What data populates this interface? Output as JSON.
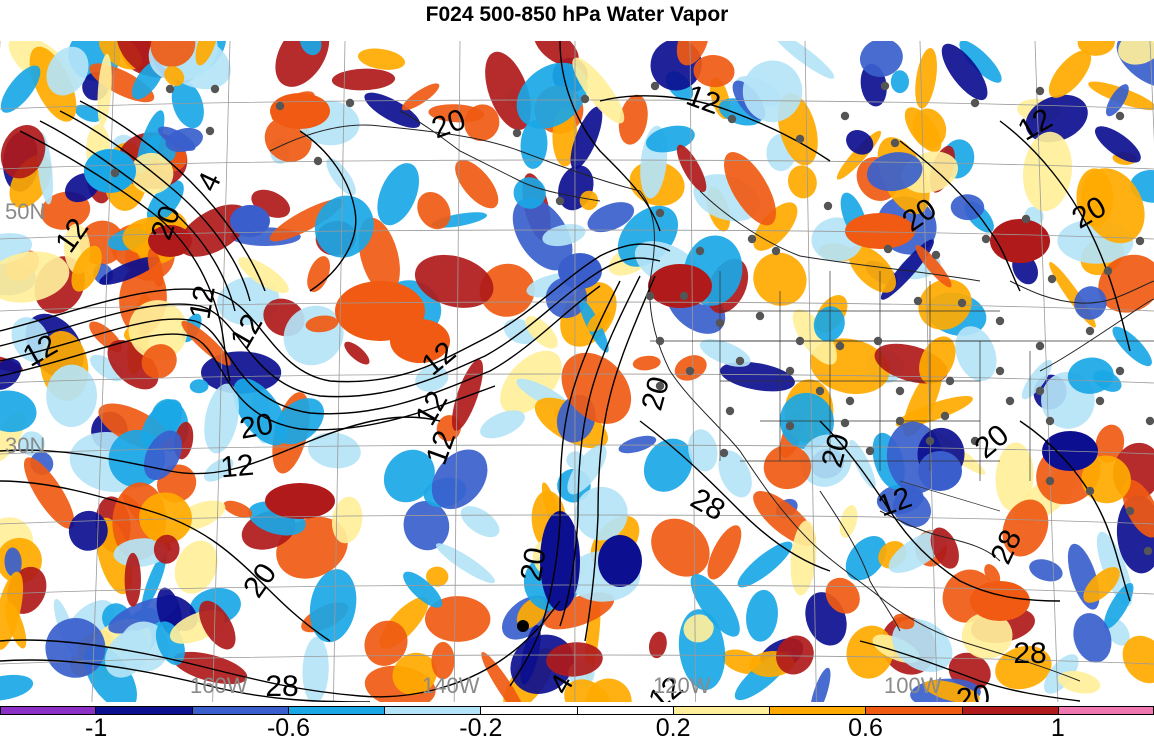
{
  "title": "F024 500-850 hPa Water Vapor",
  "axis_labels": {
    "lat_50n": "50N",
    "lat_30n": "30N",
    "lon_160w": "160W",
    "lon_140w": "140W",
    "lon_120w": "120W",
    "lon_100w": "100W"
  },
  "contour_labels": [
    "12",
    "20",
    "4",
    "12",
    "12",
    "20",
    "12",
    "20",
    "12",
    "12",
    "20",
    "12",
    "12",
    "12",
    "12",
    "20",
    "20",
    "20",
    "20",
    "20",
    "12",
    "28",
    "28",
    "28",
    "28",
    "12",
    "20",
    "20",
    "4"
  ],
  "colorbar": {
    "colors": [
      "#8c2fc6",
      "#0c0f8f",
      "#3a5fcd",
      "#1aa7e6",
      "#b4e4f7",
      "#ffffff",
      "#ffffff",
      "#ffef9a",
      "#ffaa00",
      "#f05a12",
      "#b01a1a",
      "#f077b0"
    ],
    "tick_labels": [
      "-1",
      "-0.6",
      "-0.2",
      "0.2",
      "0.6",
      "1"
    ]
  },
  "chart_data": {
    "type": "heatmap",
    "title": "F024 500-850 hPa Water Vapor",
    "variable": "water vapor anomaly (shaded) with contours",
    "levels": [
      -1.2,
      -1,
      -0.8,
      -0.6,
      -0.4,
      -0.2,
      0,
      0.2,
      0.4,
      0.6,
      0.8,
      1,
      1.2
    ],
    "colorbar_ticks": [
      -1,
      -0.6,
      -0.2,
      0.2,
      0.6,
      1
    ],
    "contour_values": [
      4,
      12,
      20,
      28
    ],
    "latitude_labels": [
      "50N",
      "30N"
    ],
    "longitude_labels": [
      "160W",
      "140W",
      "120W",
      "100W"
    ]
  }
}
